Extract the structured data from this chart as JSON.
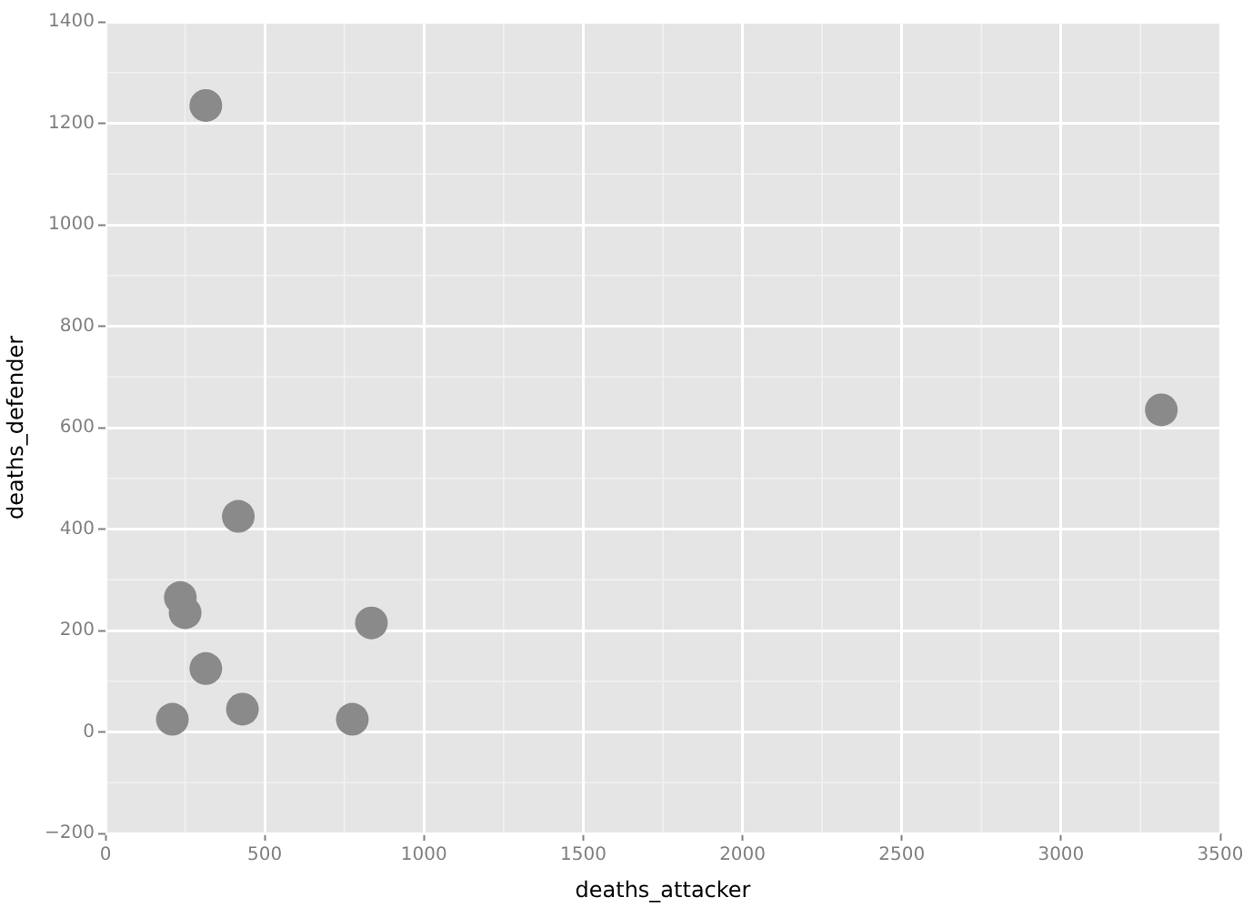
{
  "chart_data": {
    "type": "scatter",
    "xlabel": "deaths_attacker",
    "ylabel": "deaths_defender",
    "x": [
      315,
      417,
      235,
      250,
      315,
      210,
      430,
      775,
      835,
      3315
    ],
    "values": [
      1235,
      425,
      265,
      235,
      125,
      25,
      45,
      25,
      215,
      635
    ],
    "color": "#8a8a8a",
    "marker": "circle",
    "xlim": [
      0,
      3500
    ],
    "xticks": [
      0,
      500,
      1000,
      1500,
      2000,
      2500,
      3000,
      3500
    ],
    "ylim": [
      -200,
      1400
    ],
    "yticks": [
      {
        "value": -200,
        "label": "−200"
      },
      0,
      200,
      400,
      600,
      800,
      1000,
      1200,
      1400
    ],
    "grid": true,
    "legend": false
  }
}
